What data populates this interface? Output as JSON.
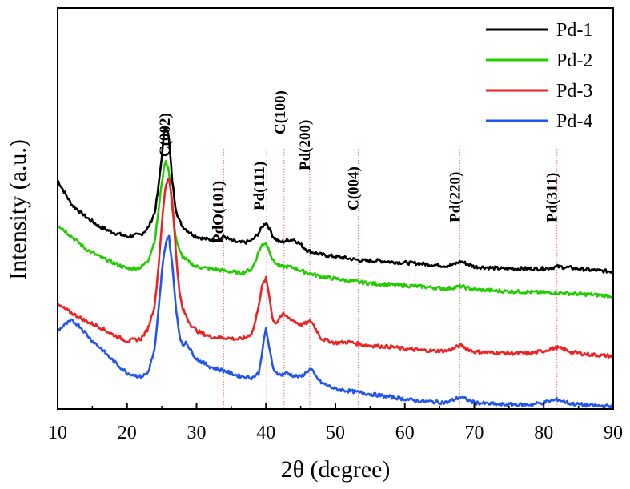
{
  "chart_data": {
    "type": "line",
    "xlabel": "2θ (degree)",
    "ylabel": "Intensity (a.u.)",
    "xlim": [
      10,
      90
    ],
    "ylim": [
      0,
      100
    ],
    "x_ticks": [
      "10",
      "20",
      "30",
      "40",
      "50",
      "60",
      "70",
      "80",
      "90"
    ],
    "y_ticks_labeled": false,
    "grid": false,
    "legend_position": "top-right",
    "series": [
      {
        "name": "Pd-1",
        "color": "#000000",
        "x": [
          10,
          12,
          14,
          16,
          18,
          20,
          22,
          23,
          24,
          24.5,
          25,
          25.5,
          26,
          26.5,
          27,
          27.5,
          28,
          29,
          30,
          31,
          32,
          33,
          34,
          35,
          36,
          37,
          38,
          39,
          39.5,
          40,
          40.5,
          41,
          42,
          43,
          44,
          45,
          46,
          47,
          48,
          50,
          52,
          54,
          56,
          58,
          60,
          62,
          64,
          66,
          67,
          68,
          69,
          70,
          72,
          74,
          76,
          78,
          80,
          82,
          84,
          86,
          88,
          90
        ],
        "values": [
          57,
          51,
          48,
          45.5,
          44,
          43,
          43.5,
          45,
          49,
          55,
          63,
          71.5,
          68,
          57,
          50,
          47,
          45.5,
          44,
          43,
          42.5,
          42.2,
          42.2,
          43,
          42,
          41.5,
          41.5,
          42,
          44,
          45.5,
          46.5,
          45,
          43,
          41.5,
          42,
          42.3,
          41,
          39.5,
          39,
          38.5,
          38,
          37.5,
          37,
          37,
          36.7,
          36.5,
          36.3,
          36,
          35.7,
          36,
          36.8,
          36.2,
          35.5,
          35.3,
          35,
          35,
          35,
          35,
          35.5,
          35.2,
          34.8,
          34.5,
          34.3
        ]
      },
      {
        "name": "Pd-2",
        "color": "#22cc00",
        "x": [
          10,
          12,
          14,
          16,
          18,
          20,
          22,
          23,
          24,
          24.5,
          25,
          25.5,
          26,
          26.5,
          27,
          27.5,
          28,
          29,
          30,
          32,
          34,
          36,
          37,
          38,
          38.5,
          39,
          39.5,
          40,
          40.5,
          41,
          42,
          43,
          44,
          45,
          46,
          48,
          50,
          52,
          54,
          56,
          58,
          60,
          62,
          64,
          66,
          67,
          68,
          69,
          70,
          72,
          74,
          76,
          78,
          80,
          82,
          84,
          86,
          88,
          90
        ],
        "values": [
          46,
          43,
          40,
          38,
          36.5,
          35,
          35.3,
          37,
          42,
          49,
          56.5,
          62,
          60,
          50,
          43,
          39.5,
          38,
          36.5,
          35.5,
          35,
          34.5,
          34,
          34.2,
          35,
          37,
          39.5,
          41,
          41.5,
          39.5,
          37,
          35.5,
          35.5,
          35.3,
          34.5,
          34,
          33,
          32.5,
          32,
          31.5,
          31.2,
          31,
          30.8,
          30.6,
          30.3,
          30,
          30.3,
          30.6,
          30.2,
          29.8,
          29.6,
          29.4,
          29.3,
          29.2,
          29,
          29,
          28.8,
          28.6,
          28.4,
          28.2
        ]
      },
      {
        "name": "Pd-3",
        "color": "#ee2222",
        "x": [
          10,
          12,
          14,
          16,
          18,
          20,
          22,
          23,
          24,
          24.5,
          25,
          25.5,
          26,
          26.5,
          27,
          27.5,
          28,
          29,
          30,
          32,
          34,
          36,
          37,
          38,
          38.5,
          39,
          39.5,
          40,
          40.5,
          41,
          41.5,
          42,
          42.5,
          43,
          44,
          45,
          46,
          46.5,
          47,
          48,
          50,
          52,
          54,
          56,
          58,
          60,
          62,
          64,
          66,
          67,
          68,
          69,
          70,
          72,
          74,
          76,
          78,
          80,
          81,
          82,
          83,
          84,
          86,
          88,
          90
        ],
        "values": [
          26,
          24,
          22,
          20.5,
          18.5,
          17,
          17.5,
          20,
          26,
          35,
          46,
          55,
          58,
          52,
          40,
          29.5,
          25,
          21.5,
          19.5,
          18,
          17.8,
          17.4,
          17.7,
          19,
          22,
          26.5,
          31,
          32.5,
          28,
          22,
          21.5,
          23,
          23.5,
          23,
          22,
          21,
          21.5,
          22,
          20.5,
          17.5,
          16.5,
          16.7,
          16,
          15.7,
          15.5,
          15,
          14.7,
          14.5,
          14.5,
          15,
          16,
          15,
          14.3,
          14.1,
          14,
          13.9,
          13.9,
          14.5,
          15,
          15.3,
          14.8,
          14.2,
          13.7,
          13.4,
          13.2
        ]
      },
      {
        "name": "Pd-4",
        "color": "#2255ee",
        "x": [
          10,
          11,
          12,
          13,
          14,
          15,
          16,
          18,
          20,
          22,
          23,
          24,
          24.5,
          25,
          25.5,
          26,
          26.5,
          27,
          27.5,
          28,
          28.5,
          29,
          30,
          32,
          34,
          36,
          38,
          39,
          39.5,
          40,
          40.5,
          41,
          42,
          43,
          44,
          45,
          46,
          46.5,
          47,
          48,
          50,
          52,
          54,
          56,
          58,
          60,
          62,
          64,
          66,
          67,
          68,
          69,
          70,
          72,
          74,
          76,
          78,
          80,
          81,
          82,
          83,
          84,
          86,
          88,
          90
        ],
        "values": [
          19.5,
          21,
          22,
          21,
          19,
          17,
          15.5,
          12,
          9,
          8,
          9,
          15,
          24,
          34,
          41,
          43.5,
          36,
          26,
          19,
          15.5,
          17,
          15,
          12.5,
          10.5,
          9.5,
          8.3,
          7.8,
          9,
          15,
          20,
          15,
          10,
          8.5,
          9,
          8.3,
          8,
          9.5,
          10,
          8.5,
          6.5,
          5,
          4.5,
          4,
          3.5,
          3,
          2.5,
          2,
          1.8,
          1.6,
          2.3,
          3,
          2.3,
          1.6,
          1.3,
          1.1,
          1.1,
          1.1,
          1.6,
          2,
          2.4,
          1.8,
          1.3,
          1,
          0.8,
          0.6
        ]
      }
    ],
    "annotations": [
      {
        "label": "C(002)",
        "x": 26,
        "x_ref": false
      },
      {
        "label": "PdO(101)",
        "x": 33.9,
        "x_ref": true
      },
      {
        "label": "Pd(111)",
        "x": 40.1,
        "x_ref": true
      },
      {
        "label": "C(100)",
        "x": 42.6,
        "x_ref": true
      },
      {
        "label": "Pd(200)",
        "x": 46.3,
        "x_ref": true
      },
      {
        "label": "C(004)",
        "x": 53.3,
        "x_ref": true
      },
      {
        "label": "Pd(220)",
        "x": 67.9,
        "x_ref": true
      },
      {
        "label": "Pd(311)",
        "x": 81.9,
        "x_ref": true
      }
    ]
  }
}
